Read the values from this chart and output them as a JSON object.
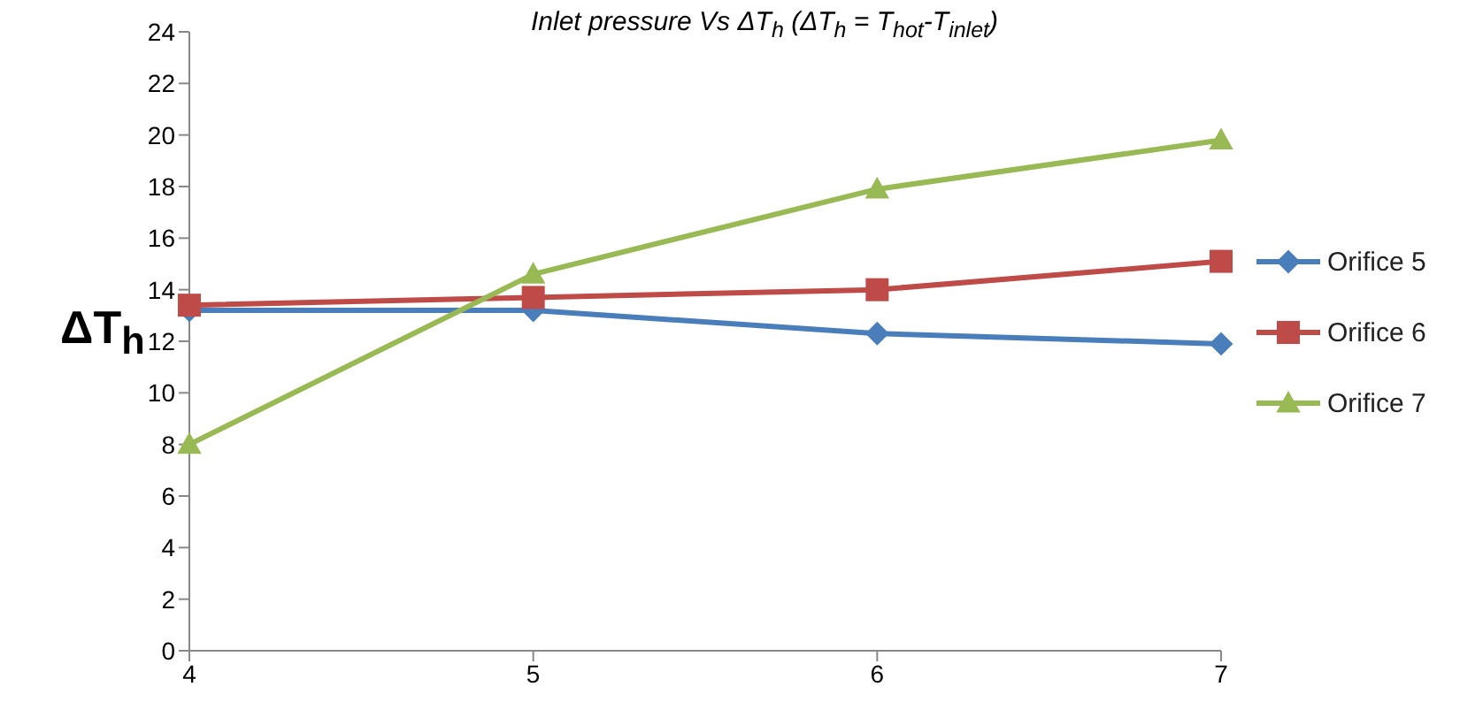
{
  "chart_data": {
    "type": "line",
    "title": "Inlet pressure Vs ΔT$_{h}$ (ΔT$_{h}$ = T$_{hot}$-T$_{inlet}$)",
    "ylabel": "ΔT$_{h}$",
    "categories": [
      "4",
      "5",
      "6",
      "7"
    ],
    "series": [
      {
        "name": "Orifice 5",
        "color": "#4a7ebb",
        "marker": "diamond",
        "values": [
          13.2,
          13.2,
          12.3,
          11.9
        ]
      },
      {
        "name": "Orifice 6",
        "color": "#be4b48",
        "marker": "square",
        "values": [
          13.4,
          13.7,
          14.0,
          15.1
        ]
      },
      {
        "name": "Orifice 7",
        "color": "#98b954",
        "marker": "triangle",
        "values": [
          8.0,
          14.6,
          17.9,
          19.8
        ]
      }
    ],
    "ylim": [
      0,
      24
    ],
    "yticks": [
      0,
      2,
      4,
      6,
      8,
      10,
      12,
      14,
      16,
      18,
      20,
      22,
      24
    ],
    "grid": false,
    "legend": "right",
    "line_style": "solid"
  }
}
